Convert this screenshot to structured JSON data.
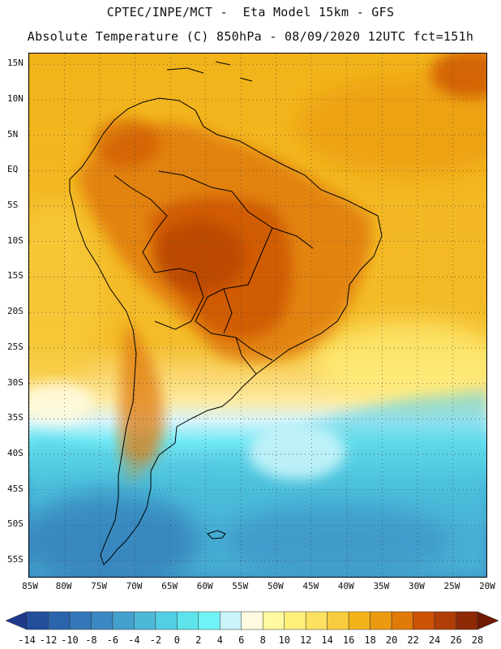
{
  "header": {
    "line1": "CPTEC/INPE/MCT -  Eta Model 15km - GFS",
    "line2": "Absolute Temperature (C) 850hPa - 08/09/2020 12UTC fct=151h"
  },
  "map": {
    "lat_labels": [
      "15N",
      "10N",
      "5N",
      "EQ",
      "5S",
      "10S",
      "15S",
      "20S",
      "25S",
      "30S",
      "35S",
      "40S",
      "45S",
      "50S",
      "55S"
    ],
    "lat_values": [
      15,
      10,
      5,
      0,
      -5,
      -10,
      -15,
      -20,
      -25,
      -30,
      -35,
      -40,
      -45,
      -50,
      -55
    ],
    "lon_labels": [
      "85W",
      "80W",
      "75W",
      "70W",
      "65W",
      "60W",
      "55W",
      "50W",
      "45W",
      "40W",
      "35W",
      "30W",
      "25W",
      "20W"
    ],
    "lon_values": [
      -85,
      -80,
      -75,
      -70,
      -65,
      -60,
      -55,
      -50,
      -45,
      -40,
      -35,
      -30,
      -25,
      -20
    ],
    "lon_range": [
      -85,
      -20
    ],
    "lat_range": [
      -57.5,
      16.5
    ],
    "grid": "dotted"
  },
  "colorbar": {
    "labels": [
      "-14",
      "-12",
      "-10",
      "-8",
      "-6",
      "-4",
      "-2",
      "0",
      "2",
      "4",
      "6",
      "8",
      "10",
      "12",
      "14",
      "16",
      "18",
      "20",
      "22",
      "24",
      "26",
      "28"
    ],
    "colors": [
      "#1f3a8a",
      "#23509c",
      "#2a64ac",
      "#3377b8",
      "#3b88c2",
      "#44a0cc",
      "#4cb9d8",
      "#52cfe2",
      "#5ee3ec",
      "#6ff3f6",
      "#c8f4fa",
      "#fffbe0",
      "#fffaa0",
      "#fff07a",
      "#fce060",
      "#f8cc3c",
      "#f2b31a",
      "#eb9a10",
      "#e07a08",
      "#cc5206",
      "#b03e06",
      "#8f2a06",
      "#6e1a04"
    ]
  }
}
